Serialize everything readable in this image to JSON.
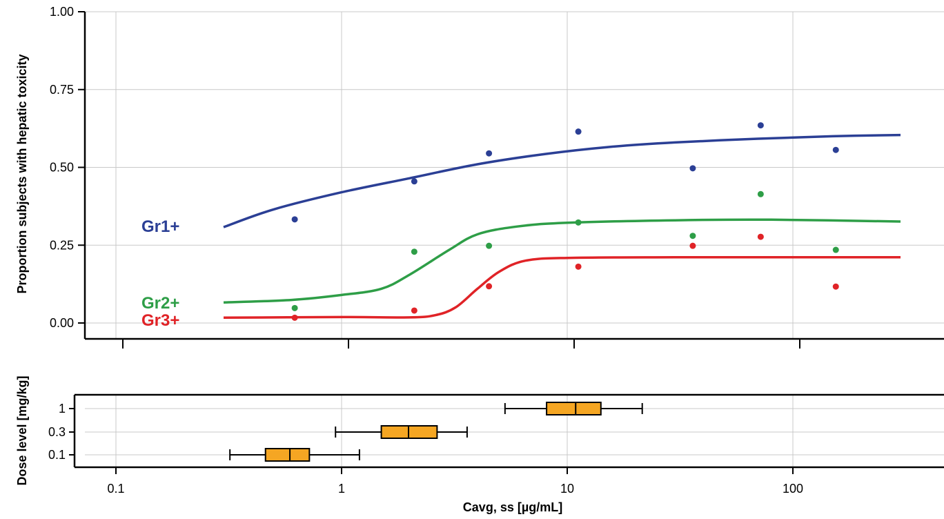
{
  "chart_data": [
    {
      "type": "scatter",
      "xscale": "log",
      "ylabel": "Proportion subjects with hepatic toxicity",
      "ylim": [
        0,
        1.0
      ],
      "xlim": [
        0.1,
        300
      ],
      "yticks": [
        "0.00",
        "0.25",
        "0.50",
        "0.75",
        "1.00"
      ],
      "grid": true,
      "series": [
        {
          "name": "Gr1+",
          "color": "#2b3f95",
          "points": [
            {
              "x": 0.62,
              "y": 0.333
            },
            {
              "x": 2.1,
              "y": 0.455
            },
            {
              "x": 4.5,
              "y": 0.545
            },
            {
              "x": 11.2,
              "y": 0.615
            },
            {
              "x": 36,
              "y": 0.497
            },
            {
              "x": 72,
              "y": 0.635
            },
            {
              "x": 155,
              "y": 0.556
            }
          ],
          "fit": [
            {
              "x": 0.3,
              "y": 0.308
            },
            {
              "x": 0.5,
              "y": 0.365
            },
            {
              "x": 1,
              "y": 0.42
            },
            {
              "x": 2,
              "y": 0.465
            },
            {
              "x": 4,
              "y": 0.51
            },
            {
              "x": 8,
              "y": 0.543
            },
            {
              "x": 15,
              "y": 0.565
            },
            {
              "x": 30,
              "y": 0.58
            },
            {
              "x": 70,
              "y": 0.592
            },
            {
              "x": 150,
              "y": 0.6
            },
            {
              "x": 300,
              "y": 0.604
            }
          ]
        },
        {
          "name": "Gr2+",
          "color": "#2e9e47",
          "points": [
            {
              "x": 0.62,
              "y": 0.048
            },
            {
              "x": 2.1,
              "y": 0.229
            },
            {
              "x": 4.5,
              "y": 0.248
            },
            {
              "x": 11.2,
              "y": 0.323
            },
            {
              "x": 36,
              "y": 0.28
            },
            {
              "x": 72,
              "y": 0.414
            },
            {
              "x": 155,
              "y": 0.235
            }
          ],
          "fit": [
            {
              "x": 0.3,
              "y": 0.066
            },
            {
              "x": 0.6,
              "y": 0.074
            },
            {
              "x": 1,
              "y": 0.09
            },
            {
              "x": 1.5,
              "y": 0.11
            },
            {
              "x": 2,
              "y": 0.155
            },
            {
              "x": 3,
              "y": 0.235
            },
            {
              "x": 4,
              "y": 0.285
            },
            {
              "x": 6,
              "y": 0.31
            },
            {
              "x": 10,
              "y": 0.322
            },
            {
              "x": 30,
              "y": 0.33
            },
            {
              "x": 80,
              "y": 0.332
            },
            {
              "x": 300,
              "y": 0.326
            }
          ]
        },
        {
          "name": "Gr3+",
          "color": "#e02327",
          "points": [
            {
              "x": 0.62,
              "y": 0.017
            },
            {
              "x": 2.1,
              "y": 0.04
            },
            {
              "x": 4.5,
              "y": 0.118
            },
            {
              "x": 11.2,
              "y": 0.181
            },
            {
              "x": 36,
              "y": 0.248
            },
            {
              "x": 72,
              "y": 0.277
            },
            {
              "x": 155,
              "y": 0.117
            }
          ],
          "fit": [
            {
              "x": 0.3,
              "y": 0.017
            },
            {
              "x": 1,
              "y": 0.019
            },
            {
              "x": 2,
              "y": 0.018
            },
            {
              "x": 2.6,
              "y": 0.025
            },
            {
              "x": 3.2,
              "y": 0.05
            },
            {
              "x": 4,
              "y": 0.11
            },
            {
              "x": 5,
              "y": 0.165
            },
            {
              "x": 6.5,
              "y": 0.2
            },
            {
              "x": 10,
              "y": 0.209
            },
            {
              "x": 30,
              "y": 0.211
            },
            {
              "x": 300,
              "y": 0.211
            }
          ]
        }
      ]
    },
    {
      "type": "boxplot",
      "xscale": "log",
      "xlabel": "Cavg, ss [µg/mL]",
      "ylabel": "Dose level [mg/kg]",
      "xlim": [
        0.1,
        300
      ],
      "xticks": [
        "0.1",
        "1",
        "10",
        "100"
      ],
      "grid": true,
      "box_color": "#f5a623",
      "categories": [
        "1",
        "0.3",
        "0.1"
      ],
      "boxes": [
        {
          "category": "1",
          "whisker_low": 5.3,
          "q1": 8.1,
          "median": 10.9,
          "q3": 14.1,
          "whisker_high": 21.5
        },
        {
          "category": "0.3",
          "whisker_low": 0.94,
          "q1": 1.5,
          "median": 1.98,
          "q3": 2.65,
          "whisker_high": 3.6
        },
        {
          "category": "0.1",
          "whisker_low": 0.32,
          "q1": 0.46,
          "median": 0.59,
          "q3": 0.72,
          "whisker_high": 1.2
        }
      ]
    }
  ]
}
